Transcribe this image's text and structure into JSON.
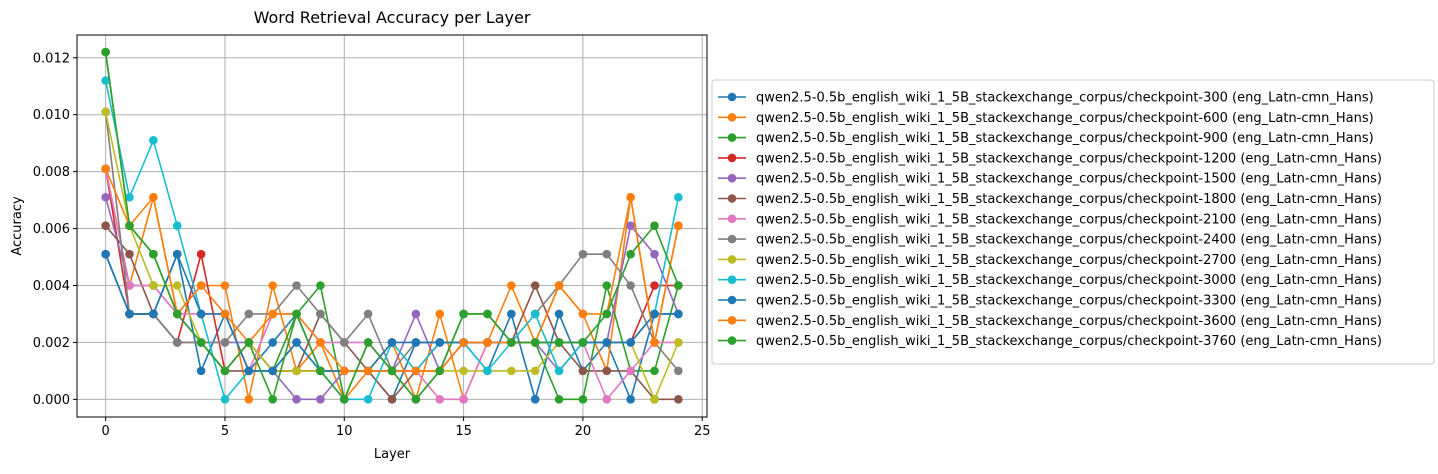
{
  "chart_data": {
    "type": "line",
    "title": "Word Retrieval Accuracy per Layer",
    "xlabel": "Layer",
    "ylabel": "Accuracy",
    "xlim": [
      -1.2,
      25.2
    ],
    "ylim": [
      -0.00062,
      0.0128
    ],
    "xticks": [
      0,
      5,
      10,
      15,
      20,
      25
    ],
    "xtick_labels": [
      "0",
      "5",
      "10",
      "15",
      "20",
      "25"
    ],
    "yticks": [
      0,
      0.002,
      0.004,
      0.006,
      0.008,
      0.01,
      0.012
    ],
    "ytick_labels": [
      "0.000",
      "0.002",
      "0.004",
      "0.006",
      "0.008",
      "0.010",
      "0.012"
    ],
    "grid": true,
    "legend_position": "outside-right",
    "x": [
      0,
      1,
      2,
      3,
      4,
      5,
      6,
      7,
      8,
      9,
      10,
      11,
      12,
      13,
      14,
      15,
      16,
      17,
      18,
      19,
      20,
      21,
      22,
      23,
      24
    ],
    "series": [
      {
        "name": "qwen2.5-0.5b_english_wiki_1_5B_stackexchange_corpus/checkpoint-300 (eng_Latn-cmn_Hans)",
        "color": "#1f77b4",
        "values": [
          0.0051,
          0.003,
          0.003,
          0.0051,
          0.001,
          0.003,
          0.001,
          0.002,
          0.003,
          0.001,
          0.001,
          0.001,
          0.0,
          0.002,
          0.002,
          0.002,
          0.001,
          0.003,
          0.0,
          0.003,
          0.001,
          0.002,
          0.0,
          0.003,
          0.003
        ]
      },
      {
        "name": "qwen2.5-0.5b_english_wiki_1_5B_stackexchange_corpus/checkpoint-600 (eng_Latn-cmn_Hans)",
        "color": "#ff7f0e",
        "values": [
          0.0081,
          0.004,
          0.0071,
          0.003,
          0.004,
          0.004,
          0.0,
          0.004,
          0.001,
          0.002,
          0.0,
          0.001,
          0.002,
          0.0,
          0.003,
          0.0,
          0.002,
          0.004,
          0.002,
          0.004,
          0.003,
          0.001,
          0.0071,
          0.002,
          0.0061
        ]
      },
      {
        "name": "qwen2.5-0.5b_english_wiki_1_5B_stackexchange_corpus/checkpoint-900 (eng_Latn-cmn_Hans)",
        "color": "#2ca02c",
        "values": [
          0.0122,
          0.0061,
          0.0051,
          0.003,
          0.002,
          0.001,
          0.002,
          0.001,
          0.003,
          0.004,
          0.0,
          0.002,
          0.001,
          0.0,
          0.001,
          0.003,
          0.003,
          0.002,
          0.002,
          0.0,
          0.0,
          0.004,
          0.001,
          0.001,
          0.004
        ]
      },
      {
        "name": "qwen2.5-0.5b_english_wiki_1_5B_stackexchange_corpus/checkpoint-1200 (eng_Latn-cmn_Hans)",
        "color": "#d62728",
        "values": [
          0.0081,
          0.003,
          0.003,
          0.002,
          0.0051,
          0.001,
          0.002,
          0.001,
          0.001,
          0.001,
          0.001,
          0.001,
          0.001,
          0.001,
          0.001,
          0.002,
          0.002,
          0.002,
          0.002,
          0.002,
          0.002,
          0.002,
          0.002,
          0.004,
          0.004
        ]
      },
      {
        "name": "qwen2.5-0.5b_english_wiki_1_5B_stackexchange_corpus/checkpoint-1500 (eng_Latn-cmn_Hans)",
        "color": "#9467bd",
        "values": [
          0.0071,
          0.004,
          0.004,
          0.003,
          0.002,
          0.002,
          0.002,
          0.001,
          0.0,
          0.0,
          0.001,
          0.001,
          0.001,
          0.003,
          0.001,
          0.002,
          0.002,
          0.002,
          0.002,
          0.001,
          0.002,
          0.002,
          0.0061,
          0.0051,
          0.003
        ]
      },
      {
        "name": "qwen2.5-0.5b_english_wiki_1_5B_stackexchange_corpus/checkpoint-1800 (eng_Latn-cmn_Hans)",
        "color": "#8c564b",
        "values": [
          0.0061,
          0.0051,
          0.003,
          0.002,
          0.002,
          0.001,
          0.001,
          0.001,
          0.001,
          0.003,
          0.002,
          0.001,
          0.0,
          0.001,
          0.002,
          0.002,
          0.002,
          0.002,
          0.004,
          0.002,
          0.001,
          0.001,
          0.001,
          0.0,
          0.0
        ]
      },
      {
        "name": "qwen2.5-0.5b_english_wiki_1_5B_stackexchange_corpus/checkpoint-2100 (eng_Latn-cmn_Hans)",
        "color": "#e377c2",
        "values": [
          0.0081,
          0.004,
          0.004,
          0.003,
          0.003,
          0.003,
          0.001,
          0.003,
          0.003,
          0.002,
          0.002,
          0.002,
          0.001,
          0.001,
          0.0,
          0.0,
          0.002,
          0.002,
          0.002,
          0.002,
          0.002,
          0.0,
          0.001,
          0.002,
          0.002
        ]
      },
      {
        "name": "qwen2.5-0.5b_english_wiki_1_5B_stackexchange_corpus/checkpoint-2400 (eng_Latn-cmn_Hans)",
        "color": "#7f7f7f",
        "values": [
          0.0101,
          0.003,
          0.003,
          0.002,
          0.002,
          0.002,
          0.003,
          0.003,
          0.004,
          0.003,
          0.002,
          0.003,
          0.001,
          0.002,
          0.002,
          0.002,
          0.002,
          0.002,
          0.003,
          0.004,
          0.0051,
          0.0051,
          0.004,
          0.002,
          0.001
        ]
      },
      {
        "name": "qwen2.5-0.5b_english_wiki_1_5B_stackexchange_corpus/checkpoint-2700 (eng_Latn-cmn_Hans)",
        "color": "#bcbd22",
        "values": [
          0.0101,
          0.0061,
          0.004,
          0.004,
          0.002,
          0.001,
          0.002,
          0.001,
          0.001,
          0.001,
          0.001,
          0.001,
          0.002,
          0.001,
          0.001,
          0.001,
          0.001,
          0.001,
          0.001,
          0.002,
          0.002,
          0.002,
          0.002,
          0.0,
          0.002
        ]
      },
      {
        "name": "qwen2.5-0.5b_english_wiki_1_5B_stackexchange_corpus/checkpoint-3000 (eng_Latn-cmn_Hans)",
        "color": "#17becf",
        "values": [
          0.0112,
          0.0071,
          0.0091,
          0.0061,
          0.003,
          0.0,
          0.001,
          0.001,
          0.002,
          0.001,
          0.0,
          0.0,
          0.002,
          0.001,
          0.002,
          0.002,
          0.001,
          0.002,
          0.003,
          0.001,
          0.002,
          0.002,
          0.002,
          0.003,
          0.0071
        ]
      },
      {
        "name": "qwen2.5-0.5b_english_wiki_1_5B_stackexchange_corpus/checkpoint-3300 (eng_Latn-cmn_Hans)",
        "color": "#1f77b4",
        "values": [
          0.0051,
          0.003,
          0.003,
          0.0051,
          0.003,
          0.003,
          0.001,
          0.001,
          0.002,
          0.001,
          0.001,
          0.001,
          0.002,
          0.002,
          0.002,
          0.002,
          0.002,
          0.002,
          0.002,
          0.002,
          0.002,
          0.002,
          0.002,
          0.003,
          0.003
        ]
      },
      {
        "name": "qwen2.5-0.5b_english_wiki_1_5B_stackexchange_corpus/checkpoint-3600 (eng_Latn-cmn_Hans)",
        "color": "#ff7f0e",
        "values": [
          0.0081,
          0.0061,
          0.0071,
          0.003,
          0.004,
          0.003,
          0.002,
          0.003,
          0.003,
          0.002,
          0.001,
          0.001,
          0.001,
          0.001,
          0.001,
          0.002,
          0.002,
          0.002,
          0.002,
          0.004,
          0.003,
          0.003,
          0.0071,
          0.002,
          0.0061
        ]
      },
      {
        "name": "qwen2.5-0.5b_english_wiki_1_5B_stackexchange_corpus/checkpoint-3760 (eng_Latn-cmn_Hans)",
        "color": "#2ca02c",
        "values": [
          0.0122,
          0.0061,
          0.0051,
          0.003,
          0.002,
          0.001,
          0.002,
          0.0,
          0.003,
          0.001,
          0.0,
          0.002,
          0.001,
          0.0,
          0.001,
          0.003,
          0.003,
          0.002,
          0.002,
          0.002,
          0.002,
          0.003,
          0.0051,
          0.0061,
          0.004
        ]
      }
    ]
  }
}
